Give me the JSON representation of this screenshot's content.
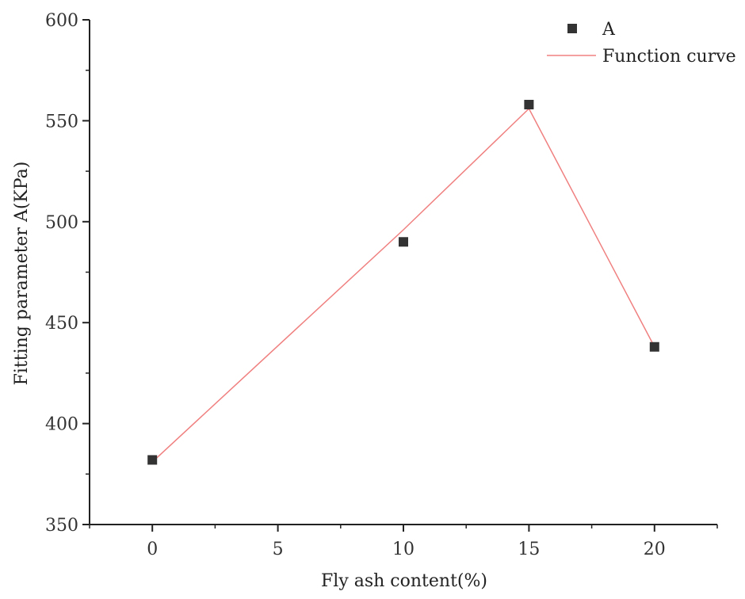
{
  "chart_data": {
    "type": "scatter",
    "title": "",
    "xlabel": "Fly ash content(%)",
    "ylabel": "Fitting parameter A(KPa)",
    "xlim": [
      -2.5,
      22.5
    ],
    "ylim": [
      350,
      600
    ],
    "x_ticks": [
      0,
      5,
      10,
      15,
      20
    ],
    "y_ticks": [
      350,
      400,
      450,
      500,
      550,
      600
    ],
    "grid": false,
    "legend_position": "top-right",
    "series": [
      {
        "name": "A",
        "kind": "scatter",
        "marker": "square",
        "color": "#333333",
        "x": [
          0,
          10,
          15,
          20
        ],
        "y": [
          382,
          490,
          558,
          438
        ]
      },
      {
        "name": "Function curve",
        "kind": "line",
        "color": "#f08080",
        "x": [
          0,
          10,
          15,
          20
        ],
        "y": [
          381,
          496,
          556,
          438
        ]
      }
    ]
  }
}
